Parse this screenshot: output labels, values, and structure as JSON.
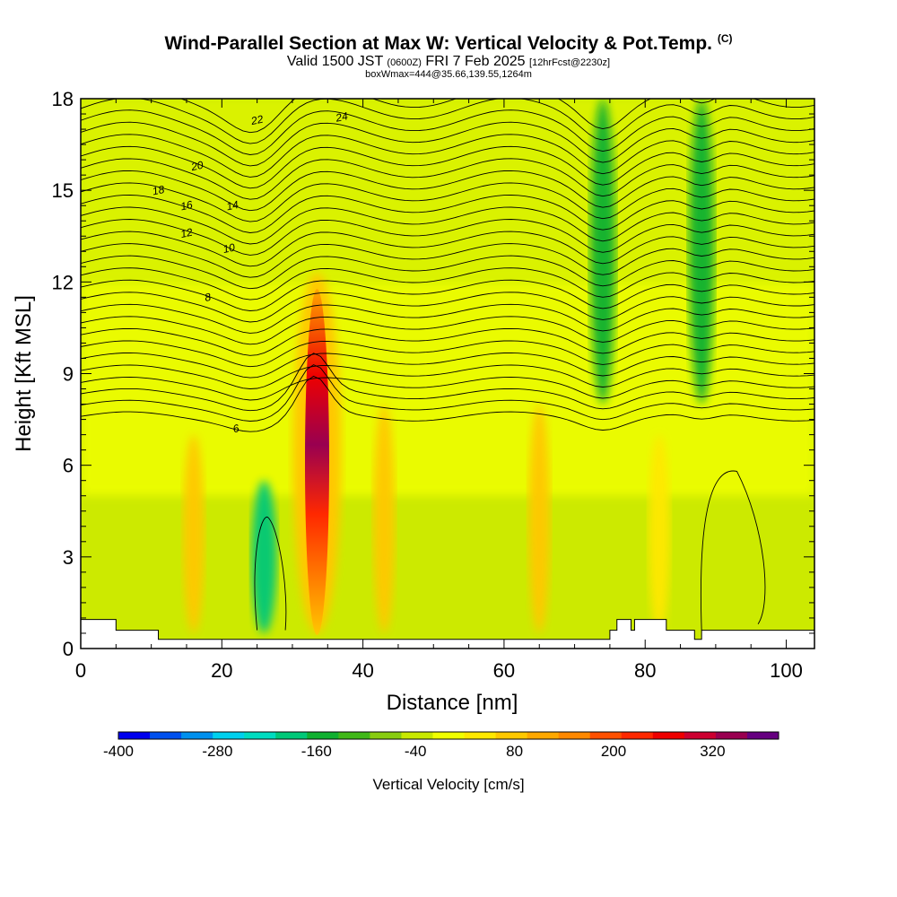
{
  "title": {
    "main": "Wind-Parallel Section at Max W: Vertical Velocity & Pot.Temp.",
    "copyright": "(C)",
    "valid_a": "Valid 1500 JST",
    "valid_b": "(0600Z)",
    "valid_c": "FRI 7 Feb 2025",
    "valid_d": "[12hrFcst@2230z]",
    "box": "boxWmax=444@35.66,139.55,1264m"
  },
  "chart_data": {
    "type": "heatmap",
    "xlabel": "Distance [nm]",
    "ylabel": "Height [Kft MSL]",
    "xlim": [
      0,
      104
    ],
    "ylim": [
      0,
      18
    ],
    "x_ticks": [
      0,
      20,
      40,
      60,
      80,
      100
    ],
    "y_ticks": [
      0,
      3,
      6,
      9,
      12,
      15,
      18
    ],
    "grid": false,
    "colorbar": {
      "label": "Vertical Velocity [cm/s]",
      "min": -400,
      "max": 400,
      "tick_labels": [
        -400,
        -280,
        -160,
        -40,
        80,
        200,
        320
      ],
      "colors": [
        "#0000ee",
        "#0050ee",
        "#0090ee",
        "#00d0ee",
        "#00dcc0",
        "#00c878",
        "#10b030",
        "#40b818",
        "#88cc10",
        "#c8e800",
        "#f0ff00",
        "#ffe800",
        "#ffc800",
        "#ffa800",
        "#ff8800",
        "#ff5000",
        "#ff2800",
        "#ee0000",
        "#cc0030",
        "#990050",
        "#660080"
      ]
    },
    "w_features": [
      {
        "x": 33.5,
        "y0": 0.5,
        "y1": 12.3,
        "w_peak": 444,
        "kind": "updraft"
      },
      {
        "x": 26,
        "y0": 0.5,
        "y1": 5.5,
        "w_peak": -180,
        "kind": "downdraft"
      },
      {
        "x": 16,
        "y0": 0.5,
        "y1": 7,
        "w_peak": 60,
        "kind": "updraft"
      },
      {
        "x": 43,
        "y0": 0.5,
        "y1": 8,
        "w_peak": 70,
        "kind": "updraft"
      },
      {
        "x": 65,
        "y0": 0.5,
        "y1": 8,
        "w_peak": 60,
        "kind": "updraft"
      },
      {
        "x": 74,
        "y0": 8,
        "y1": 18,
        "w_peak": -150,
        "kind": "downdraft"
      },
      {
        "x": 82,
        "y0": 0.5,
        "y1": 7,
        "w_peak": 50,
        "kind": "updraft"
      },
      {
        "x": 88,
        "y0": 8,
        "y1": 18,
        "w_peak": -140,
        "kind": "downdraft"
      }
    ],
    "theta_contours": [
      {
        "label": "6",
        "label_x": 22,
        "label_y": 7.2
      },
      {
        "label": "8",
        "label_x": 18,
        "label_y": 11.5
      },
      {
        "label": "10",
        "label_x": 21,
        "label_y": 13.1
      },
      {
        "label": "12",
        "label_x": 15,
        "label_y": 13.6
      },
      {
        "label": "14",
        "label_x": 21.5,
        "label_y": 14.5
      },
      {
        "label": "16",
        "label_x": 15,
        "label_y": 14.5
      },
      {
        "label": "18",
        "label_x": 11,
        "label_y": 15
      },
      {
        "label": "20",
        "label_x": 16.5,
        "label_y": 15.8
      },
      {
        "label": "22",
        "label_x": 25,
        "label_y": 17.3
      },
      {
        "label": "24",
        "label_x": 37,
        "label_y": 17.4
      }
    ]
  }
}
